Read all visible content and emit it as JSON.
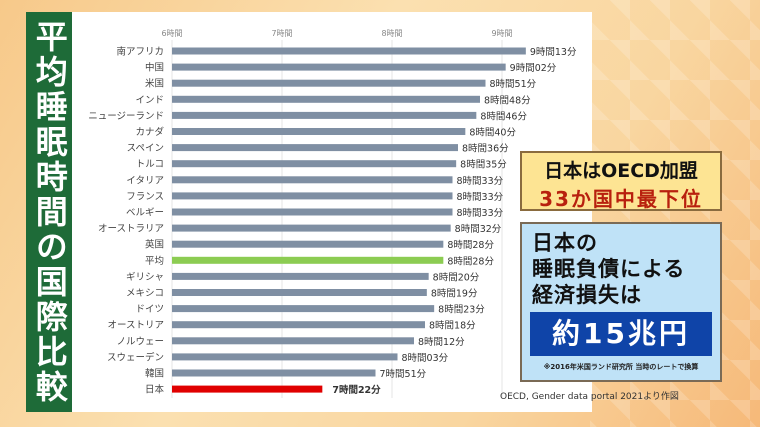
{
  "title": "平均睡眠時間の国際比較",
  "source": "OECD, Gender data portal 2021より作図",
  "callout1": {
    "line1": "日本はOECD加盟",
    "line2": "33か国中最下位"
  },
  "callout2": {
    "line1": "日本の",
    "line2": "睡眠負債による",
    "line3": "経済損失は",
    "amount": "約15兆円",
    "note": "※2016年米国ランド研究所 当時のレートで換算"
  },
  "colors": {
    "default": "#7f8fa3",
    "average": "#8ccc52",
    "japan": "#e00000"
  },
  "chart_data": {
    "type": "bar",
    "orientation": "horizontal",
    "unit": "minutes",
    "xlim": [
      360,
      560
    ],
    "ticks": [
      {
        "value": 360,
        "label": "6時間"
      },
      {
        "value": 420,
        "label": "7時間"
      },
      {
        "value": 480,
        "label": "8時間"
      },
      {
        "value": 540,
        "label": "9時間"
      }
    ],
    "categories": [
      "南アフリカ",
      "中国",
      "米国",
      "インド",
      "ニュージーランド",
      "カナダ",
      "スペイン",
      "トルコ",
      "イタリア",
      "フランス",
      "ベルギー",
      "オーストラリア",
      "英国",
      "平均",
      "ギリシャ",
      "メキシコ",
      "ドイツ",
      "オーストリア",
      "ノルウェー",
      "スウェーデン",
      "韓国",
      "日本"
    ],
    "values": [
      553,
      542,
      531,
      528,
      526,
      520,
      516,
      515,
      513,
      513,
      513,
      512,
      508,
      508,
      500,
      499,
      503,
      498,
      492,
      483,
      471,
      442
    ],
    "labels": [
      "9時間13分",
      "9時間02分",
      "8時間51分",
      "8時間48分",
      "8時間46分",
      "8時間40分",
      "8時間36分",
      "8時間35分",
      "8時間33分",
      "8時間33分",
      "8時間33分",
      "8時間32分",
      "8時間28分",
      "8時間28分",
      "8時間20分",
      "8時間19分",
      "8時間23分",
      "8時間18分",
      "8時間12分",
      "8時間03分",
      "7時間51分",
      "7時間22分"
    ],
    "highlight": {
      "平均": "average",
      "日本": "japan"
    }
  }
}
